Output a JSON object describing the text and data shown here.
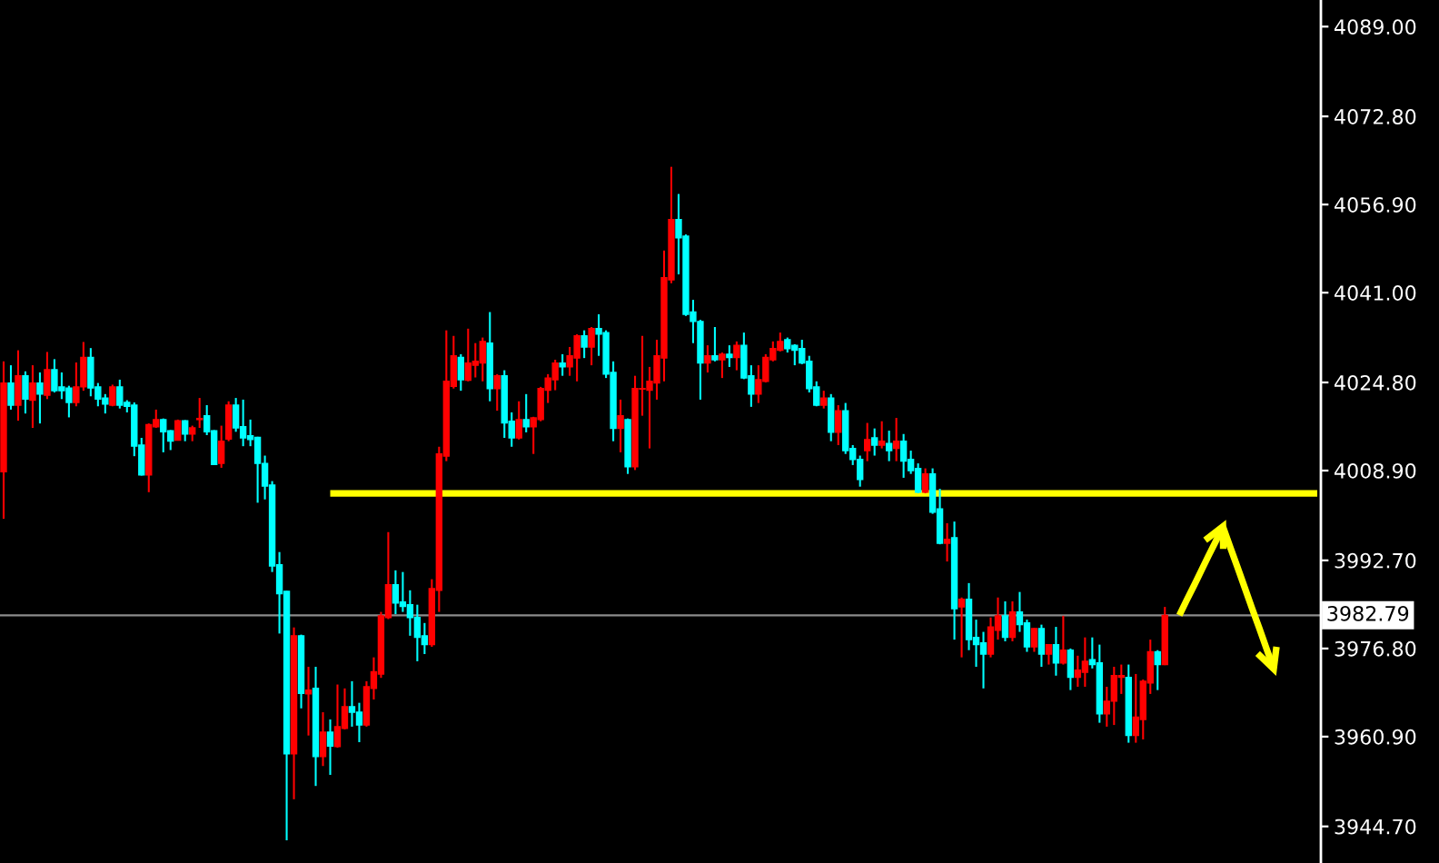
{
  "chart_data": {
    "type": "candlestick",
    "categories": [
      null,
      null,
      null,
      null,
      null,
      null,
      null,
      null,
      null,
      null,
      null,
      null,
      null,
      null,
      null,
      null,
      null,
      null,
      null,
      null,
      null,
      null,
      null,
      null,
      null,
      null,
      null,
      null,
      null,
      null,
      null,
      null,
      null,
      null,
      null,
      null,
      null,
      null,
      null,
      null,
      null,
      null,
      null,
      null,
      null,
      null,
      null,
      null,
      null,
      null,
      null,
      null,
      null,
      null,
      null,
      null,
      null,
      null,
      null,
      null,
      null,
      null,
      null,
      null,
      null,
      null,
      null,
      null,
      null,
      null,
      null,
      null,
      null,
      null,
      null,
      null,
      null,
      null,
      null,
      null,
      null,
      null,
      null,
      null,
      null,
      null,
      null,
      null,
      null,
      null,
      null,
      null,
      null,
      null,
      null,
      null,
      null,
      null,
      null,
      null,
      null,
      null,
      null,
      null,
      null,
      null,
      null,
      null,
      null,
      null,
      null,
      null,
      null,
      null,
      null,
      null,
      null,
      null,
      null,
      null,
      null,
      null,
      null,
      null,
      null,
      null,
      null,
      null,
      null,
      null,
      null,
      null,
      null,
      null,
      null,
      null,
      null,
      null,
      null,
      null,
      null,
      null,
      null,
      null,
      null,
      null,
      null,
      null,
      null,
      null,
      null,
      null,
      null,
      null,
      null,
      null,
      null,
      null,
      null,
      null,
      null,
      null,
      null,
      null,
      null,
      null,
      null,
      null,
      null,
      null,
      null,
      null,
      null,
      null,
      null,
      null,
      null,
      null,
      null,
      null,
      null,
      null
    ],
    "ohlc": [
      [
        4008.7,
        4028.6,
        4000.2,
        4024.7
      ],
      [
        4024.7,
        4027.9,
        4019.9,
        4020.7
      ],
      [
        4020.7,
        4030.6,
        4017.9,
        4026.0
      ],
      [
        4026.0,
        4026.8,
        4019.2,
        4021.8
      ],
      [
        4021.6,
        4027.9,
        4016.6,
        4024.7
      ],
      [
        4024.7,
        4026.6,
        4017.4,
        4022.7
      ],
      [
        4022.5,
        4030.3,
        4021.8,
        4027.1
      ],
      [
        4027.1,
        4029.0,
        4023.0,
        4023.3
      ],
      [
        4024.0,
        4026.6,
        4021.8,
        4023.3
      ],
      [
        4023.8,
        4024.2,
        4018.5,
        4021.2
      ],
      [
        4021.2,
        4028.4,
        4020.5,
        4024.0
      ],
      [
        4024.0,
        4032.1,
        4023.3,
        4029.3
      ],
      [
        4029.3,
        4031.0,
        4022.3,
        4023.8
      ],
      [
        4024.0,
        4024.7,
        4020.5,
        4021.8
      ],
      [
        4022.0,
        4022.7,
        4019.2,
        4020.9
      ],
      [
        4020.7,
        4024.4,
        4020.5,
        4024.0
      ],
      [
        4024.0,
        4025.3,
        4020.1,
        4020.7
      ],
      [
        4021.2,
        4021.6,
        4019.4,
        4020.5
      ],
      [
        4020.7,
        4021.2,
        4011.5,
        4013.3
      ],
      [
        4013.5,
        4014.8,
        4008.0,
        4008.1
      ],
      [
        4008.1,
        4017.4,
        4005.0,
        4017.2
      ],
      [
        4016.8,
        4019.9,
        4016.6,
        4018.1
      ],
      [
        4018.1,
        4018.3,
        4012.2,
        4015.9
      ],
      [
        4016.1,
        4016.2,
        4012.6,
        4014.2
      ],
      [
        4014.4,
        4018.1,
        4014.3,
        4017.9
      ],
      [
        4017.9,
        4018.0,
        4014.2,
        4015.5
      ],
      [
        4015.5,
        4017.0,
        4014.2,
        4016.6
      ],
      [
        4018.1,
        4022.0,
        4016.6,
        4018.3
      ],
      [
        4018.8,
        4020.7,
        4015.3,
        4015.9
      ],
      [
        4016.1,
        4016.2,
        4009.9,
        4010.0
      ],
      [
        4010.2,
        4017.0,
        4009.4,
        4014.2
      ],
      [
        4014.6,
        4021.4,
        4014.2,
        4020.7
      ],
      [
        4020.7,
        4022.0,
        4015.9,
        4016.6
      ],
      [
        4016.8,
        4021.7,
        4013.3,
        4014.8
      ],
      [
        4015.2,
        4018.1,
        4013.3,
        4014.5
      ],
      [
        4014.9,
        4015.0,
        4003.1,
        4010.2
      ],
      [
        4010.2,
        4011.6,
        4003.7,
        4006.1
      ],
      [
        4006.3,
        4007.0,
        3990.6,
        3991.7
      ],
      [
        3991.9,
        3994.2,
        3979.5,
        3986.7
      ],
      [
        3987.1,
        3987.2,
        3942.2,
        3957.8
      ],
      [
        3957.8,
        3980.6,
        3949.6,
        3979.1
      ],
      [
        3979.1,
        3979.3,
        3966.0,
        3968.7
      ],
      [
        3968.6,
        3973.5,
        3961.1,
        3969.3
      ],
      [
        3969.6,
        3973.5,
        3952.0,
        3957.3
      ],
      [
        3957.3,
        3965.3,
        3955.6,
        3961.7
      ],
      [
        3961.7,
        3964.0,
        3954.0,
        3959.2
      ],
      [
        3959.1,
        3970.3,
        3958.9,
        3962.7
      ],
      [
        3962.4,
        3969.6,
        3962.2,
        3966.3
      ],
      [
        3966.3,
        3970.9,
        3962.7,
        3965.3
      ],
      [
        3965.3,
        3967.0,
        3959.9,
        3963.0
      ],
      [
        3963.0,
        3970.9,
        3962.7,
        3969.9
      ],
      [
        3969.6,
        3975.2,
        3967.6,
        3972.6
      ],
      [
        3972.2,
        3983.4,
        3971.5,
        3982.7
      ],
      [
        3982.4,
        3997.8,
        3982.1,
        3988.3
      ],
      [
        3988.3,
        3990.9,
        3983.0,
        3985.0
      ],
      [
        3985.2,
        3990.6,
        3983.4,
        3984.4
      ],
      [
        3984.7,
        3987.3,
        3979.1,
        3982.4
      ],
      [
        3982.4,
        3984.7,
        3974.5,
        3978.8
      ],
      [
        3979.1,
        3981.4,
        3975.8,
        3977.5
      ],
      [
        3977.5,
        3989.3,
        3977.1,
        3987.6
      ],
      [
        3987.3,
        4013.2,
        3983.4,
        4011.9
      ],
      [
        4011.5,
        4034.2,
        4010.6,
        4025.0
      ],
      [
        4024.1,
        4033.2,
        4023.7,
        4029.6
      ],
      [
        4029.3,
        4029.9,
        4023.3,
        4025.3
      ],
      [
        4025.2,
        4034.5,
        4025.0,
        4028.3
      ],
      [
        4027.9,
        4031.9,
        4025.7,
        4028.6
      ],
      [
        4028.3,
        4032.9,
        4025.0,
        4032.2
      ],
      [
        4031.9,
        4037.5,
        4021.4,
        4023.7
      ],
      [
        4023.7,
        4026.3,
        4019.7,
        4026.0
      ],
      [
        4026.0,
        4027.0,
        4014.8,
        4017.5
      ],
      [
        4017.8,
        4019.4,
        4013.2,
        4014.8
      ],
      [
        4014.8,
        4021.4,
        4014.5,
        4018.1
      ],
      [
        4018.1,
        4022.7,
        4015.8,
        4016.8
      ],
      [
        4016.8,
        4018.6,
        4011.9,
        4018.4
      ],
      [
        4018.1,
        4024.0,
        4017.8,
        4023.7
      ],
      [
        4023.4,
        4026.3,
        4021.1,
        4025.6
      ],
      [
        4025.3,
        4028.9,
        4023.4,
        4028.3
      ],
      [
        4028.3,
        4029.9,
        4026.0,
        4027.6
      ],
      [
        4027.6,
        4031.2,
        4026.0,
        4029.6
      ],
      [
        4029.2,
        4033.5,
        4025.0,
        4033.2
      ],
      [
        4033.2,
        4034.2,
        4029.2,
        4031.2
      ],
      [
        4031.2,
        4034.8,
        4027.9,
        4034.5
      ],
      [
        4034.5,
        4037.1,
        4029.6,
        4033.5
      ],
      [
        4033.8,
        4034.2,
        4025.6,
        4026.3
      ],
      [
        4026.6,
        4028.6,
        4014.2,
        4016.5
      ],
      [
        4016.5,
        4021.7,
        4012.2,
        4018.8
      ],
      [
        4018.1,
        4018.3,
        4008.3,
        4009.6
      ],
      [
        4009.6,
        4026.0,
        4009.0,
        4023.7
      ],
      [
        4023.6,
        4033.2,
        4018.8,
        4023.7
      ],
      [
        4023.4,
        4027.6,
        4012.9,
        4025.0
      ],
      [
        4024.7,
        4032.5,
        4021.7,
        4029.6
      ],
      [
        4029.2,
        4048.6,
        4025.0,
        4043.7
      ],
      [
        4043.3,
        4063.7,
        4042.7,
        4054.2
      ],
      [
        4054.2,
        4058.8,
        4044.3,
        4050.9
      ],
      [
        4051.2,
        4051.5,
        4036.8,
        4037.1
      ],
      [
        4037.5,
        4039.7,
        4031.9,
        4035.8
      ],
      [
        4035.8,
        4036.1,
        4021.7,
        4028.3
      ],
      [
        4028.3,
        4031.5,
        4026.6,
        4029.6
      ],
      [
        4029.6,
        4034.8,
        4028.6,
        4028.9
      ],
      [
        4028.9,
        4030.2,
        4025.6,
        4029.9
      ],
      [
        4029.9,
        4031.5,
        4027.6,
        4029.3
      ],
      [
        4029.3,
        4032.2,
        4027.0,
        4031.5
      ],
      [
        4031.5,
        4033.8,
        4025.4,
        4025.6
      ],
      [
        4026.0,
        4027.9,
        4020.4,
        4022.7
      ],
      [
        4022.7,
        4027.9,
        4021.1,
        4025.3
      ],
      [
        4025.0,
        4029.9,
        4024.8,
        4029.3
      ],
      [
        4028.9,
        4032.2,
        4028.6,
        4030.9
      ],
      [
        4030.6,
        4033.8,
        4030.4,
        4032.2
      ],
      [
        4032.5,
        4032.9,
        4030.2,
        4030.9
      ],
      [
        4031.5,
        4031.7,
        4027.9,
        4030.6
      ],
      [
        4030.9,
        4032.5,
        4028.1,
        4028.3
      ],
      [
        4028.6,
        4029.6,
        4023.0,
        4023.7
      ],
      [
        4024.0,
        4025.0,
        4020.5,
        4020.7
      ],
      [
        4020.7,
        4023.3,
        4020.1,
        4022.0
      ],
      [
        4022.0,
        4022.7,
        4014.2,
        4015.8
      ],
      [
        4015.8,
        4020.7,
        4013.5,
        4019.7
      ],
      [
        4019.7,
        4021.1,
        4011.9,
        4012.5
      ],
      [
        4012.9,
        4013.5,
        4009.9,
        4010.9
      ],
      [
        4010.9,
        4011.6,
        4006.0,
        4007.3
      ],
      [
        4012.5,
        4017.5,
        4010.6,
        4014.5
      ],
      [
        4014.8,
        4016.5,
        4011.6,
        4013.5
      ],
      [
        4013.5,
        4017.8,
        4012.9,
        4014.2
      ],
      [
        4013.8,
        4016.1,
        4010.6,
        4012.5
      ],
      [
        4012.9,
        4018.4,
        4010.6,
        4014.2
      ],
      [
        4014.2,
        4015.5,
        4007.6,
        4010.6
      ],
      [
        4010.9,
        4012.5,
        4008.3,
        4008.9
      ],
      [
        4009.3,
        4010.2,
        4004.8,
        4005.0
      ],
      [
        4005.0,
        4009.3,
        4004.8,
        4008.3
      ],
      [
        4008.3,
        4009.3,
        4001.1,
        4001.4
      ],
      [
        4002.0,
        4005.6,
        3995.6,
        3995.8
      ],
      [
        3995.8,
        3999.4,
        3992.5,
        3996.5
      ],
      [
        3996.8,
        3999.7,
        3978.4,
        3984.0
      ],
      [
        3984.3,
        3986.0,
        3975.2,
        3985.7
      ],
      [
        3985.7,
        3988.6,
        3976.5,
        3978.4
      ],
      [
        3978.8,
        3982.0,
        3973.5,
        3977.5
      ],
      [
        3977.8,
        3979.8,
        3969.6,
        3975.8
      ],
      [
        3975.8,
        3982.4,
        3975.2,
        3980.7
      ],
      [
        3980.1,
        3986.0,
        3978.4,
        3982.7
      ],
      [
        3982.7,
        3985.3,
        3978.1,
        3978.8
      ],
      [
        3978.8,
        3985.3,
        3978.1,
        3983.4
      ],
      [
        3983.4,
        3987.0,
        3979.8,
        3981.1
      ],
      [
        3981.4,
        3982.0,
        3976.2,
        3977.1
      ],
      [
        3977.1,
        3980.5,
        3976.2,
        3980.4
      ],
      [
        3980.4,
        3981.1,
        3973.5,
        3975.8
      ],
      [
        3975.8,
        3977.6,
        3973.9,
        3977.5
      ],
      [
        3977.5,
        3980.7,
        3971.9,
        3974.2
      ],
      [
        3974.2,
        3982.7,
        3973.9,
        3976.5
      ],
      [
        3976.5,
        3976.8,
        3969.3,
        3971.6
      ],
      [
        3971.6,
        3975.5,
        3969.9,
        3972.9
      ],
      [
        3972.5,
        3978.8,
        3969.9,
        3974.5
      ],
      [
        3974.8,
        3978.8,
        3973.2,
        3973.9
      ],
      [
        3974.2,
        3977.5,
        3963.4,
        3965.0
      ],
      [
        3965.0,
        3969.9,
        3962.7,
        3967.3
      ],
      [
        3967.3,
        3973.5,
        3963.0,
        3971.9
      ],
      [
        3971.6,
        3973.9,
        3968.6,
        3971.9
      ],
      [
        3971.6,
        3973.9,
        3959.8,
        3961.1
      ],
      [
        3961.1,
        3972.2,
        3959.8,
        3964.4
      ],
      [
        3964.0,
        3971.2,
        3960.4,
        3970.9
      ],
      [
        3970.6,
        3978.4,
        3968.6,
        3976.2
      ],
      [
        3976.2,
        3976.5,
        3969.3,
        3973.9
      ],
      [
        3973.9,
        3984.3,
        3973.8,
        3982.79
      ],
      null,
      null,
      null,
      null,
      null,
      null,
      null,
      null,
      null,
      null,
      null,
      null,
      null,
      null,
      null,
      null,
      null,
      null,
      null,
      null,
      null
    ],
    "colors": [
      "#ff0000",
      "#00ffff",
      "#ff0000",
      "#00ffff",
      "#ff0000",
      "#00ffff",
      "#ff0000",
      "#00ffff",
      "#00ffff",
      "#00ffff",
      "#ff0000",
      "#ff0000",
      "#00ffff",
      "#00ffff",
      "#00ffff",
      "#ff0000",
      "#00ffff",
      "#00ffff",
      "#00ffff",
      "#00ffff",
      "#ff0000",
      "#ff0000",
      "#00ffff",
      "#00ffff",
      "#ff0000",
      "#00ffff",
      "#ff0000",
      "#ff0000",
      "#00ffff",
      "#00ffff",
      "#ff0000",
      "#ff0000",
      "#00ffff",
      "#00ffff",
      "#00ffff",
      "#00ffff",
      "#00ffff",
      "#00ffff",
      "#00ffff",
      "#00ffff",
      "#ff0000",
      "#00ffff",
      "#ff0000",
      "#00ffff",
      "#ff0000",
      "#00ffff",
      "#ff0000",
      "#ff0000",
      "#00ffff",
      "#00ffff",
      "#ff0000",
      "#ff0000",
      "#ff0000",
      "#ff0000",
      "#00ffff",
      "#00ffff",
      "#00ffff",
      "#00ffff",
      "#00ffff",
      "#ff0000",
      "#ff0000",
      "#ff0000",
      "#ff0000",
      "#00ffff",
      "#ff0000",
      "#ff0000",
      "#ff0000",
      "#00ffff",
      "#ff0000",
      "#00ffff",
      "#00ffff",
      "#ff0000",
      "#00ffff",
      "#ff0000",
      "#ff0000",
      "#ff0000",
      "#ff0000",
      "#00ffff",
      "#ff0000",
      "#ff0000",
      "#00ffff",
      "#ff0000",
      "#00ffff",
      "#00ffff",
      "#00ffff",
      "#ff0000",
      "#00ffff",
      "#ff0000",
      "#ff0000",
      "#ff0000",
      "#ff0000",
      "#ff0000",
      "#ff0000",
      "#00ffff",
      "#00ffff",
      "#00ffff",
      "#00ffff",
      "#ff0000",
      "#00ffff",
      "#ff0000",
      "#00ffff",
      "#ff0000",
      "#00ffff",
      "#00ffff",
      "#ff0000",
      "#ff0000",
      "#ff0000",
      "#ff0000",
      "#00ffff",
      "#00ffff",
      "#00ffff",
      "#00ffff",
      "#00ffff",
      "#ff0000",
      "#00ffff",
      "#ff0000",
      "#00ffff",
      "#00ffff",
      "#00ffff",
      "#ff0000",
      "#00ffff",
      "#ff0000",
      "#00ffff",
      "#ff0000",
      "#00ffff",
      "#00ffff",
      "#00ffff",
      "#ff0000",
      "#00ffff",
      "#00ffff",
      "#ff0000",
      "#00ffff",
      "#ff0000",
      "#00ffff",
      "#00ffff",
      "#00ffff",
      "#ff0000",
      "#ff0000",
      "#00ffff",
      "#ff0000",
      "#00ffff",
      "#00ffff",
      "#ff0000",
      "#00ffff",
      "#ff0000",
      "#00ffff",
      "#ff0000",
      "#00ffff",
      "#ff0000",
      "#ff0000",
      "#00ffff",
      "#00ffff",
      "#ff0000",
      "#ff0000",
      "#ff0000",
      "#00ffff",
      "#ff0000",
      "#ff0000",
      "#ff0000",
      "#00ffff",
      "#ff0000",
      null,
      null,
      null,
      null,
      null,
      null,
      null,
      null,
      null,
      null,
      null,
      null,
      null,
      null,
      null,
      null,
      null,
      null,
      null,
      null,
      null
    ],
    "series": [
      {
        "type": "line",
        "color": "#ffff00",
        "values": [
          null,
          null,
          null,
          null,
          null,
          null,
          null,
          null,
          null,
          null,
          null,
          null,
          null,
          null,
          null,
          null,
          null,
          null,
          null,
          null,
          null,
          null,
          null,
          null,
          null,
          null,
          null,
          null,
          null,
          null,
          null,
          null,
          null,
          null,
          null,
          null,
          null,
          null,
          null,
          null,
          null,
          null,
          null,
          null,
          null,
          4004.8,
          4004.8,
          4004.8,
          4004.8,
          4004.8,
          4004.8,
          4004.8,
          4004.8,
          4004.8,
          4004.8,
          4004.8,
          4004.8,
          4004.8,
          4004.8,
          4004.8,
          4004.8,
          4004.8,
          4004.8,
          4004.8,
          4004.8,
          4004.8,
          4004.8,
          4004.8,
          4004.8,
          4004.8,
          4004.8,
          4004.8,
          4004.8,
          4004.8,
          4004.8,
          4004.8,
          4004.8,
          4004.8,
          4004.8,
          4004.8,
          4004.8,
          4004.8,
          4004.8,
          4004.8,
          4004.8,
          4004.8,
          4004.8,
          4004.8,
          4004.8,
          4004.8,
          4004.8,
          4004.8,
          4004.8,
          4004.8,
          4004.8,
          4004.8,
          4004.8,
          4004.8,
          4004.8,
          4004.8,
          4004.8,
          4004.8,
          4004.8,
          4004.8,
          4004.8,
          4004.8,
          4004.8,
          4004.8,
          4004.8,
          4004.8,
          4004.8,
          4004.8,
          4004.8,
          4004.8,
          4004.8,
          4004.8,
          4004.8,
          4004.8,
          4004.8,
          4004.8,
          4004.8,
          4004.8,
          4004.8,
          4004.8,
          4004.8,
          4004.8,
          4004.8,
          4004.8,
          4004.8,
          4004.8,
          4004.8,
          4004.8,
          4004.8,
          4004.8,
          4004.8,
          4004.8,
          4004.8,
          4004.8,
          4004.8,
          4004.8,
          4004.8,
          4004.8,
          4004.8,
          4004.8,
          4004.8,
          4004.8,
          4004.8,
          4004.8,
          4004.8,
          4004.8,
          4004.8,
          4004.8,
          4004.8,
          4004.8,
          4004.8,
          4004.8,
          4004.8,
          4004.8,
          4004.8,
          4004.8,
          4004.8,
          4004.8,
          4004.8,
          4004.8,
          4004.8,
          4004.8,
          4004.8,
          4004.8,
          4004.8,
          4004.8,
          4004.8,
          4004.8,
          4004.8,
          4004.8,
          4004.8,
          4004.8,
          4004.8,
          4004.8,
          4004.8,
          4004.8,
          4004.8,
          4004.8
        ]
      },
      {
        "type": "line",
        "color": "#ffff00",
        "values": [
          null,
          null,
          null,
          null,
          null,
          null,
          null,
          null,
          null,
          null,
          null,
          null,
          null,
          null,
          null,
          null,
          null,
          null,
          null,
          null,
          null,
          null,
          null,
          null,
          null,
          null,
          null,
          null,
          null,
          null,
          null,
          null,
          null,
          null,
          null,
          null,
          null,
          null,
          null,
          null,
          null,
          null,
          null,
          null,
          null,
          null,
          null,
          null,
          null,
          null,
          null,
          null,
          null,
          null,
          null,
          null,
          null,
          null,
          null,
          null,
          null,
          null,
          null,
          null,
          null,
          null,
          null,
          null,
          null,
          null,
          null,
          null,
          null,
          null,
          null,
          null,
          null,
          null,
          null,
          null,
          null,
          null,
          null,
          null,
          null,
          null,
          null,
          null,
          null,
          null,
          null,
          null,
          null,
          null,
          null,
          null,
          null,
          null,
          null,
          null,
          null,
          null,
          null,
          null,
          null,
          null,
          null,
          null,
          null,
          null,
          null,
          null,
          null,
          null,
          null,
          null,
          null,
          null,
          null,
          null,
          null,
          null,
          null,
          null,
          null,
          null,
          null,
          null,
          null,
          null,
          null,
          null,
          null,
          null,
          null,
          null,
          null,
          null,
          null,
          null,
          null,
          null,
          null,
          null,
          null,
          null,
          null,
          null,
          null,
          null,
          null,
          null,
          null,
          null,
          null,
          null,
          null,
          null,
          null,
          null,
          null,
          null,
          3982.8,
          3985.5,
          3988.1,
          3990.8,
          3993.5,
          3996.1,
          3998.8,
          null,
          null,
          null,
          null,
          null,
          null,
          null,
          null,
          null,
          null,
          null,
          null,
          null
        ]
      },
      {
        "type": "line",
        "color": "#ffff00",
        "values": [
          null,
          null,
          null,
          null,
          null,
          null,
          null,
          null,
          null,
          null,
          null,
          null,
          null,
          null,
          null,
          null,
          null,
          null,
          null,
          null,
          null,
          null,
          null,
          null,
          null,
          null,
          null,
          null,
          null,
          null,
          null,
          null,
          null,
          null,
          null,
          null,
          null,
          null,
          null,
          null,
          null,
          null,
          null,
          null,
          null,
          null,
          null,
          null,
          null,
          null,
          null,
          null,
          null,
          null,
          null,
          null,
          null,
          null,
          null,
          null,
          null,
          null,
          null,
          null,
          null,
          null,
          null,
          null,
          null,
          null,
          null,
          null,
          null,
          null,
          null,
          null,
          null,
          null,
          null,
          null,
          null,
          null,
          null,
          null,
          null,
          null,
          null,
          null,
          null,
          null,
          null,
          null,
          null,
          null,
          null,
          null,
          null,
          null,
          null,
          null,
          null,
          null,
          null,
          null,
          null,
          null,
          null,
          null,
          null,
          null,
          null,
          null,
          null,
          null,
          null,
          null,
          null,
          null,
          null,
          null,
          null,
          null,
          null,
          null,
          null,
          null,
          null,
          null,
          null,
          null,
          null,
          null,
          null,
          null,
          null,
          null,
          null,
          null,
          null,
          null,
          null,
          null,
          null,
          null,
          null,
          null,
          null,
          null,
          null,
          null,
          null,
          null,
          null,
          null,
          null,
          null,
          null,
          null,
          null,
          null,
          null,
          null,
          null,
          null,
          null,
          null,
          null,
          null,
          3998.8,
          3995.1,
          3991.5,
          3987.8,
          3984.1,
          3980.5,
          3976.8,
          3973.1,
          null,
          null,
          null,
          null,
          null,
          null
        ]
      }
    ],
    "ref_lines": [
      {
        "axis": "y",
        "value": 3982.79,
        "label": "3982.79",
        "color": "#8c8c8c"
      }
    ],
    "ylim": [
      3938.1,
      4093.8
    ],
    "yticks": [
      {
        "value": 3944.7,
        "label": "3944.70"
      },
      {
        "value": 3960.9,
        "label": "3960.90"
      },
      {
        "value": 3976.8,
        "label": "3976.80"
      },
      {
        "value": 3992.7,
        "label": "3992.70"
      },
      {
        "value": 4008.9,
        "label": "4008.90"
      },
      {
        "value": 4024.8,
        "label": "4024.80"
      },
      {
        "value": 4041.0,
        "label": "4041.00"
      },
      {
        "value": 4056.9,
        "label": "4056.90"
      },
      {
        "value": 4072.8,
        "label": "4072.80"
      },
      {
        "value": 4089.0,
        "label": "4089.00"
      }
    ],
    "tick_labels": "y"
  }
}
